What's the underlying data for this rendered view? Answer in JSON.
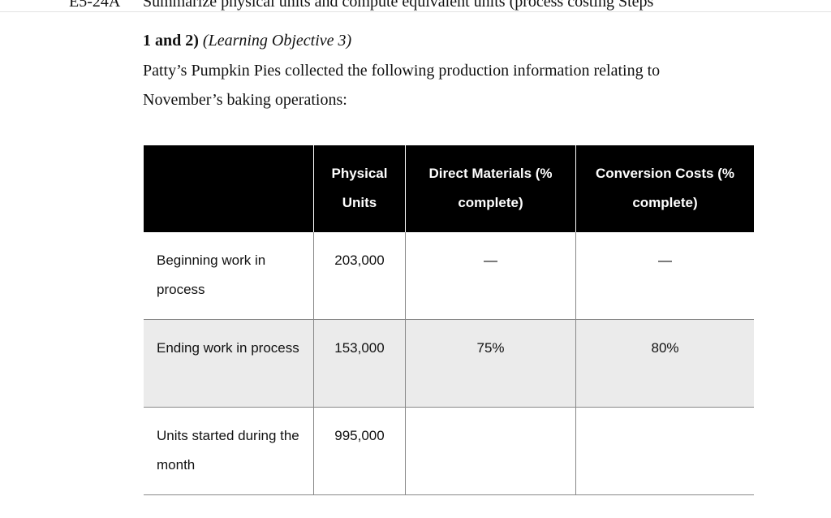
{
  "header": {
    "code": "E5-24A",
    "title": "Summarize physical units and compute equivalent units (process costing Steps",
    "title_cont": "1 and 2)",
    "objective": "(Learning Objective 3)"
  },
  "intro": "Patty’s Pumpkin Pies collected the following production information relating to November’s baking operations:",
  "table": {
    "headers": [
      "Physical Units",
      "Direct Materials (% complete)",
      "Conversion Costs (% complete)"
    ],
    "rows": [
      [
        "Beginning work in process",
        "203,000",
        "—",
        "—"
      ],
      [
        "Ending work in process",
        "153,000",
        "75%",
        "80%"
      ],
      [
        "Units started during the month",
        "995,000"
      ]
    ]
  }
}
